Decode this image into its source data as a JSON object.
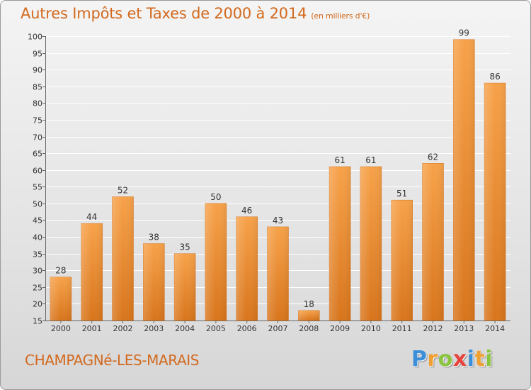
{
  "header": {
    "title": "Autres Impôts et Taxes de 2000 à 2014",
    "subtitle": "(en milliers d'€)"
  },
  "footer": {
    "commune": "CHAMPAGNé-LES-MARAIS",
    "logo_letters": [
      "P",
      "r",
      "o",
      "x",
      "i",
      "t",
      "i"
    ],
    "logo_colors": [
      "#3b8fd9",
      "#f0a030",
      "#8bc43f",
      "#e8423b",
      "#3b8fd9",
      "#f0a030",
      "#8bc43f"
    ]
  },
  "chart_data": {
    "type": "bar",
    "categories": [
      "2000",
      "2001",
      "2002",
      "2003",
      "2004",
      "2005",
      "2006",
      "2007",
      "2008",
      "2009",
      "2010",
      "2011",
      "2012",
      "2013",
      "2014"
    ],
    "values": [
      28,
      44,
      52,
      38,
      35,
      50,
      46,
      43,
      18,
      61,
      61,
      51,
      62,
      99,
      86
    ],
    "ylim": [
      15,
      100
    ],
    "yticks": [
      15,
      20,
      25,
      30,
      35,
      40,
      45,
      50,
      55,
      60,
      65,
      70,
      75,
      80,
      85,
      90,
      95,
      100
    ],
    "grid": true,
    "bar_color": "#f08a24",
    "text_color": "#d2691e"
  }
}
